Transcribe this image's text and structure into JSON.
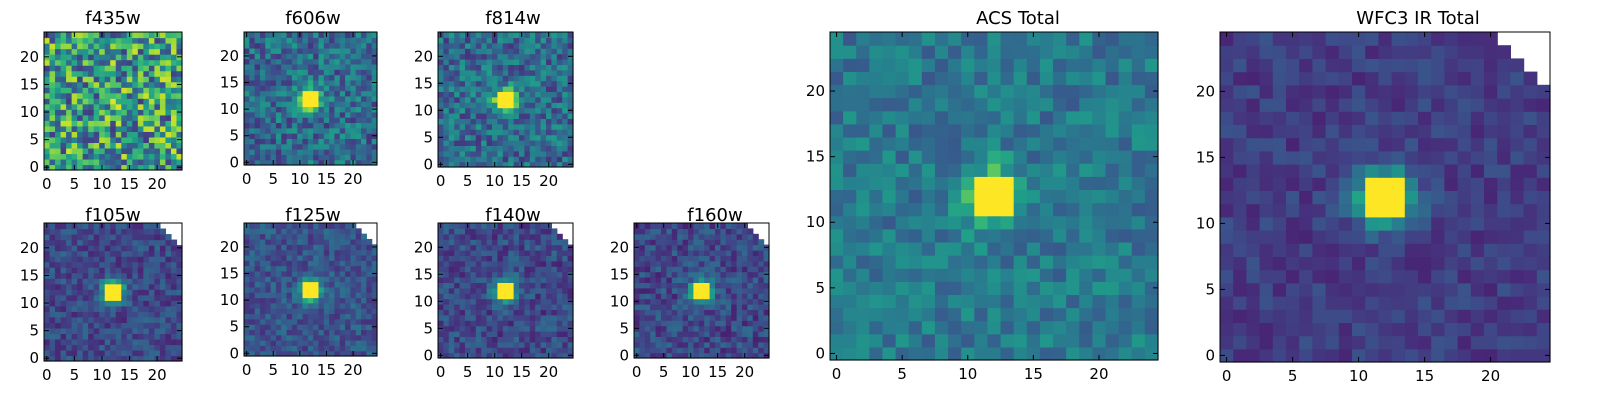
{
  "chart_data": [
    {
      "type": "heatmap",
      "title": "f435w",
      "x_ticks": [
        "0",
        "5",
        "10",
        "15",
        "20"
      ],
      "y_ticks": [
        "0",
        "5",
        "10",
        "15",
        "20"
      ],
      "xlim": [
        0,
        25
      ],
      "ylim": [
        0,
        25
      ],
      "colormap": "viridis",
      "source_peak": [
        12,
        12
      ],
      "source_strength": 0.05,
      "background_level": 0.55,
      "noise_level": 0.38,
      "masked_corner_top_right": false
    },
    {
      "type": "heatmap",
      "title": "f606w",
      "x_ticks": [
        "0",
        "5",
        "10",
        "15",
        "20"
      ],
      "y_ticks": [
        "0",
        "5",
        "10",
        "15",
        "20"
      ],
      "xlim": [
        0,
        25
      ],
      "ylim": [
        0,
        25
      ],
      "colormap": "viridis",
      "source_peak": [
        12,
        12
      ],
      "source_strength": 0.78,
      "background_level": 0.35,
      "noise_level": 0.2,
      "masked_corner_top_right": false
    },
    {
      "type": "heatmap",
      "title": "f814w",
      "x_ticks": [
        "0",
        "5",
        "10",
        "15",
        "20"
      ],
      "y_ticks": [
        "0",
        "5",
        "10",
        "15",
        "20"
      ],
      "xlim": [
        0,
        25
      ],
      "ylim": [
        0,
        25
      ],
      "colormap": "viridis",
      "source_peak": [
        12,
        12
      ],
      "source_strength": 0.78,
      "background_level": 0.35,
      "noise_level": 0.2,
      "masked_corner_top_right": false
    },
    {
      "type": "heatmap",
      "title": "f105w",
      "x_ticks": [
        "0",
        "5",
        "10",
        "15",
        "20"
      ],
      "y_ticks": [
        "0",
        "5",
        "10",
        "15",
        "20"
      ],
      "xlim": [
        0,
        25
      ],
      "ylim": [
        0,
        25
      ],
      "colormap": "viridis",
      "source_peak": [
        12,
        12
      ],
      "source_strength": 0.72,
      "background_level": 0.22,
      "noise_level": 0.12,
      "masked_corner_top_right": true
    },
    {
      "type": "heatmap",
      "title": "f125w",
      "x_ticks": [
        "0",
        "5",
        "10",
        "15",
        "20"
      ],
      "y_ticks": [
        "0",
        "5",
        "10",
        "15",
        "20"
      ],
      "xlim": [
        0,
        25
      ],
      "ylim": [
        0,
        25
      ],
      "colormap": "viridis",
      "source_peak": [
        12,
        12
      ],
      "source_strength": 0.72,
      "background_level": 0.26,
      "noise_level": 0.12,
      "masked_corner_top_right": true
    },
    {
      "type": "heatmap",
      "title": "f140w",
      "x_ticks": [
        "0",
        "5",
        "10",
        "15",
        "20"
      ],
      "y_ticks": [
        "0",
        "5",
        "10",
        "15",
        "20"
      ],
      "xlim": [
        0,
        25
      ],
      "ylim": [
        0,
        25
      ],
      "colormap": "viridis",
      "source_peak": [
        12,
        12
      ],
      "source_strength": 0.72,
      "background_level": 0.22,
      "noise_level": 0.13,
      "masked_corner_top_right": true
    },
    {
      "type": "heatmap",
      "title": "f160w",
      "x_ticks": [
        "0",
        "5",
        "10",
        "15",
        "20"
      ],
      "y_ticks": [
        "0",
        "5",
        "10",
        "15",
        "20"
      ],
      "xlim": [
        0,
        25
      ],
      "ylim": [
        0,
        25
      ],
      "colormap": "viridis",
      "source_peak": [
        12,
        12
      ],
      "source_strength": 0.72,
      "background_level": 0.22,
      "noise_level": 0.13,
      "masked_corner_top_right": true
    },
    {
      "type": "heatmap",
      "title": "ACS Total",
      "x_ticks": [
        "0",
        "5",
        "10",
        "15",
        "20"
      ],
      "y_ticks": [
        "0",
        "5",
        "10",
        "15",
        "20"
      ],
      "xlim": [
        0,
        25
      ],
      "ylim": [
        0,
        25
      ],
      "colormap": "viridis",
      "source_peak": [
        12,
        12
      ],
      "source_strength": 0.62,
      "background_level": 0.4,
      "noise_level": 0.13,
      "masked_corner_top_right": false
    },
    {
      "type": "heatmap",
      "title": "WFC3 IR Total",
      "x_ticks": [
        "0",
        "5",
        "10",
        "15",
        "20"
      ],
      "y_ticks": [
        "0",
        "5",
        "10",
        "15",
        "20"
      ],
      "xlim": [
        0,
        25
      ],
      "ylim": [
        0,
        25
      ],
      "colormap": "viridis",
      "source_peak": [
        12,
        12
      ],
      "source_strength": 0.78,
      "background_level": 0.18,
      "noise_level": 0.08,
      "masked_corner_top_right": true
    }
  ]
}
